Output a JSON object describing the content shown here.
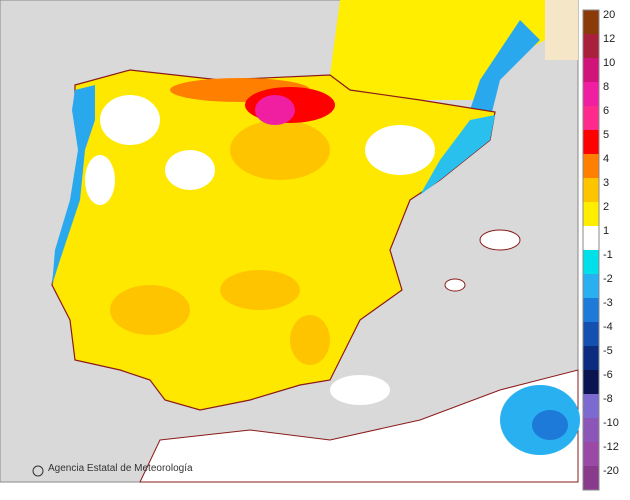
{
  "legend": {
    "labels": [
      "20",
      "12",
      "10",
      "8",
      "6",
      "5",
      "4",
      "3",
      "2",
      "1",
      "-1",
      "-2",
      "-3",
      "-4",
      "-5",
      "-6",
      "-8",
      "-10",
      "-12",
      "-20"
    ],
    "colors": [
      "#8b3a0a",
      "#a8203c",
      "#d0147a",
      "#f01ea0",
      "#ff2a8c",
      "#ff0000",
      "#ff8000",
      "#ffc400",
      "#ffee00",
      "#ffffff",
      "#00e0e8",
      "#28b0f0",
      "#1e7ad8",
      "#1450b0",
      "#0c2c80",
      "#0a1450",
      "#7c6ad0",
      "#8c56b8",
      "#9a4aa4",
      "#8a3a8a"
    ]
  },
  "credit": "Agencia Estatal de Meteorología",
  "logo": "aemet"
}
